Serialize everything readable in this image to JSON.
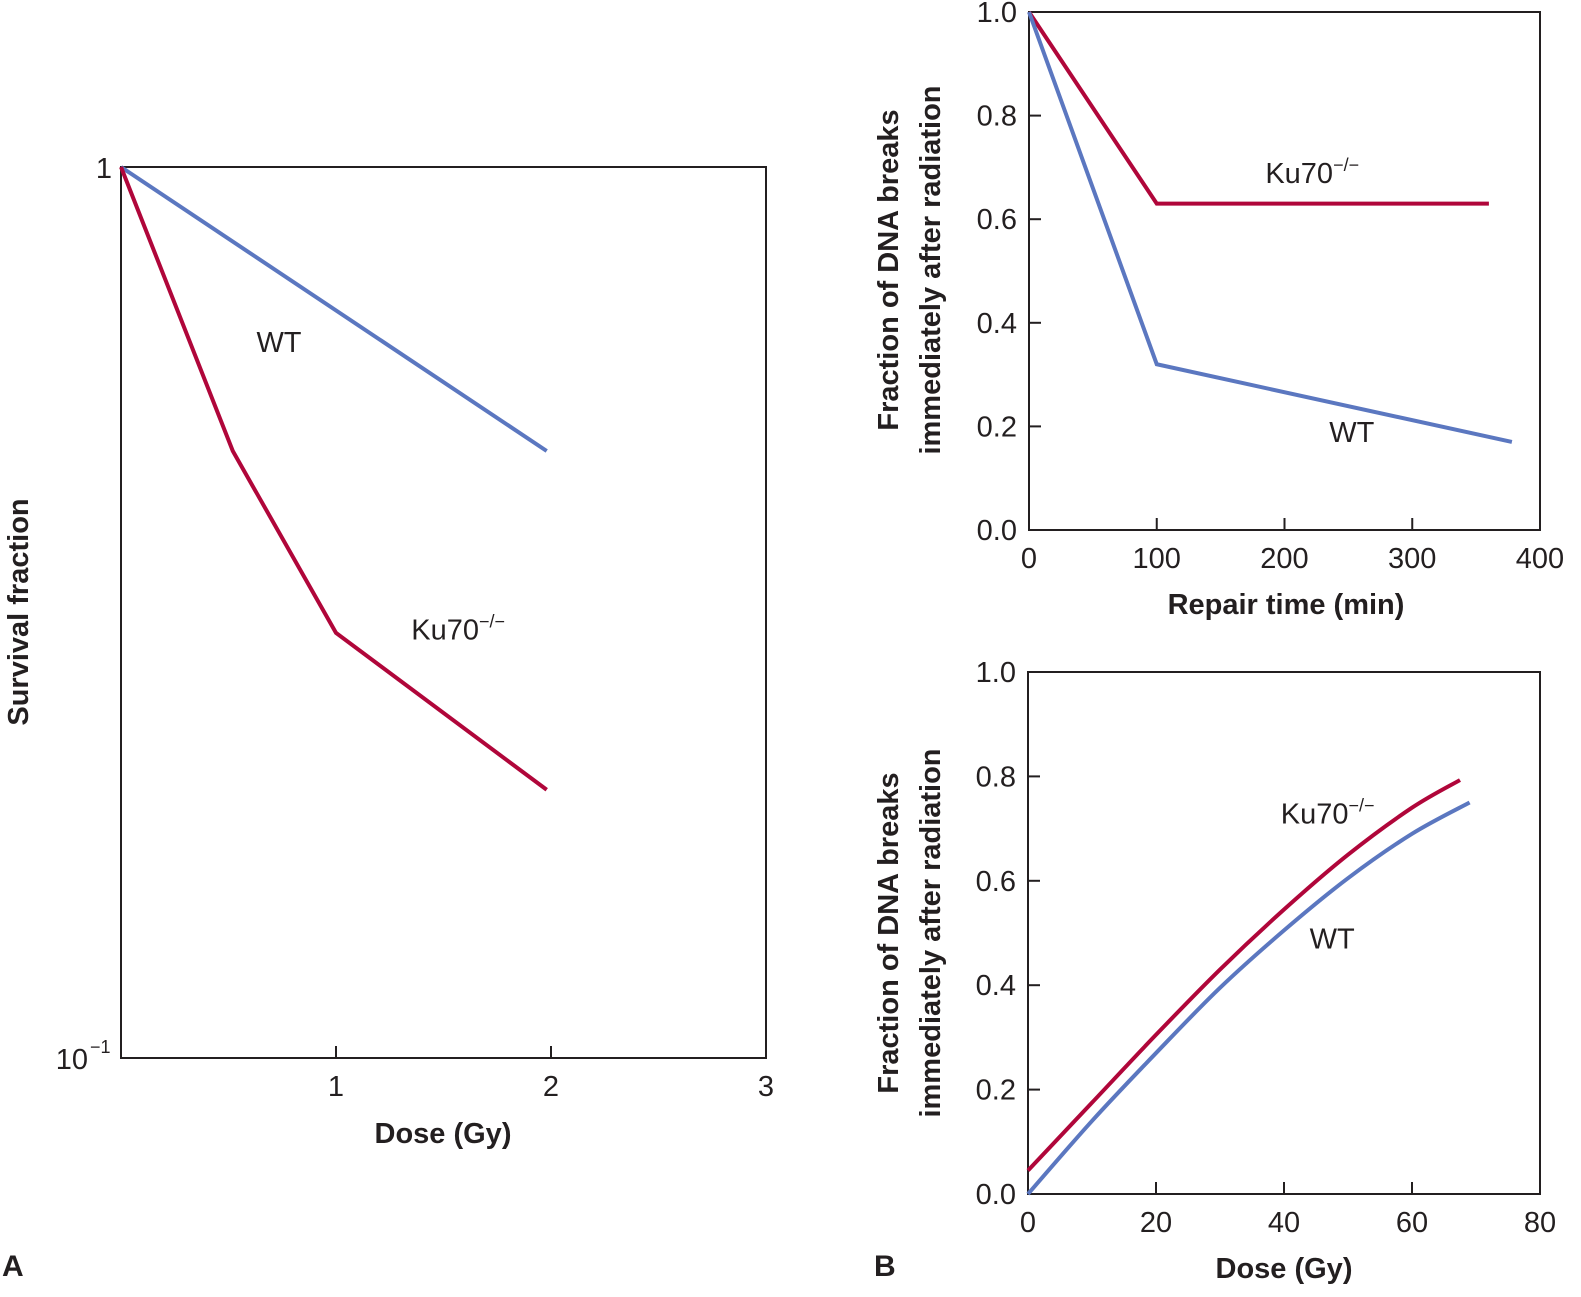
{
  "colors": {
    "wt": "#5b77c0",
    "ku70": "#b0063a",
    "axis": "#231f20"
  },
  "chart_data": [
    {
      "panel": "A",
      "type": "line",
      "title": "",
      "xlabel": "Dose (Gy)",
      "ylabel": "Survival fraction",
      "yscale": "log",
      "xlim": [
        0,
        3
      ],
      "ylim": [
        0.1,
        1
      ],
      "xticks": [
        1,
        2,
        3
      ],
      "xtick_labels": [
        "1",
        "2",
        "3"
      ],
      "yticks": [
        1,
        0.1
      ],
      "ytick_labels": [
        {
          "base": "1",
          "exp": ""
        },
        {
          "base": "10",
          "exp": "−1"
        }
      ],
      "grid": false,
      "series": [
        {
          "name": "WT",
          "label_base": "WT",
          "label_sup": "",
          "color_key": "wt",
          "x": [
            0,
            1.98
          ],
          "y": [
            1,
            0.48
          ],
          "label_at": [
            0.63,
            0.62
          ]
        },
        {
          "name": "Ku70−/−",
          "label_base": "Ku70",
          "label_sup": "−/−",
          "color_key": "ku70",
          "x": [
            0,
            0.52,
            1.0,
            1.98
          ],
          "y": [
            1,
            0.48,
            0.3,
            0.2
          ],
          "label_at": [
            1.35,
            0.295
          ]
        }
      ]
    },
    {
      "panel": "B-top",
      "type": "line",
      "title": "",
      "xlabel": "Repair time (min)",
      "ylabel_lines": [
        "Fraction of DNA breaks",
        "immediately after radiation"
      ],
      "xlim": [
        0,
        400
      ],
      "ylim": [
        0,
        1
      ],
      "xticks": [
        0,
        100,
        200,
        300,
        400
      ],
      "xtick_labels": [
        "0",
        "100",
        "200",
        "300",
        "400"
      ],
      "yticks": [
        0,
        0.2,
        0.4,
        0.6,
        0.8,
        1.0
      ],
      "ytick_labels": [
        "0.0",
        "0.2",
        "0.4",
        "0.6",
        "0.8",
        "1.0"
      ],
      "grid": false,
      "series": [
        {
          "name": "Ku70−/−",
          "label_base": "Ku70",
          "label_sup": "−/−",
          "color_key": "ku70",
          "x": [
            0,
            100,
            360
          ],
          "y": [
            1.0,
            0.63,
            0.63
          ],
          "label_at": [
            185,
            0.67
          ]
        },
        {
          "name": "WT",
          "label_base": "WT",
          "label_sup": "",
          "color_key": "wt",
          "x": [
            0,
            100,
            378
          ],
          "y": [
            1.0,
            0.32,
            0.17
          ],
          "label_at": [
            235,
            0.17
          ]
        }
      ]
    },
    {
      "panel": "B-bottom",
      "type": "line",
      "title": "",
      "xlabel": "Dose (Gy)",
      "ylabel_lines": [
        "Fraction of DNA breaks",
        "immediately after radiation"
      ],
      "xlim": [
        0,
        80
      ],
      "ylim": [
        0,
        1
      ],
      "xticks": [
        0,
        20,
        40,
        60,
        80
      ],
      "xtick_labels": [
        "0",
        "20",
        "40",
        "60",
        "80"
      ],
      "yticks": [
        0,
        0.2,
        0.4,
        0.6,
        0.8,
        1.0
      ],
      "ytick_labels": [
        "0.0",
        "0.2",
        "0.4",
        "0.6",
        "0.8",
        "1.0"
      ],
      "grid": false,
      "series": [
        {
          "name": "Ku70−/−",
          "label_base": "Ku70",
          "label_sup": "−/−",
          "color_key": "ku70",
          "x": [
            0,
            10,
            20,
            30,
            40,
            50,
            60,
            67.5
          ],
          "y": [
            0.045,
            0.175,
            0.305,
            0.43,
            0.545,
            0.65,
            0.74,
            0.793
          ],
          "label_at": [
            39.5,
            0.71
          ]
        },
        {
          "name": "WT",
          "label_base": "WT",
          "label_sup": "",
          "color_key": "wt",
          "x": [
            0,
            10,
            20,
            30,
            40,
            50,
            60,
            69
          ],
          "y": [
            0.0,
            0.14,
            0.27,
            0.395,
            0.505,
            0.605,
            0.69,
            0.75
          ],
          "label_at": [
            44,
            0.47
          ]
        }
      ]
    }
  ],
  "panel_letters": [
    "A",
    "B"
  ]
}
